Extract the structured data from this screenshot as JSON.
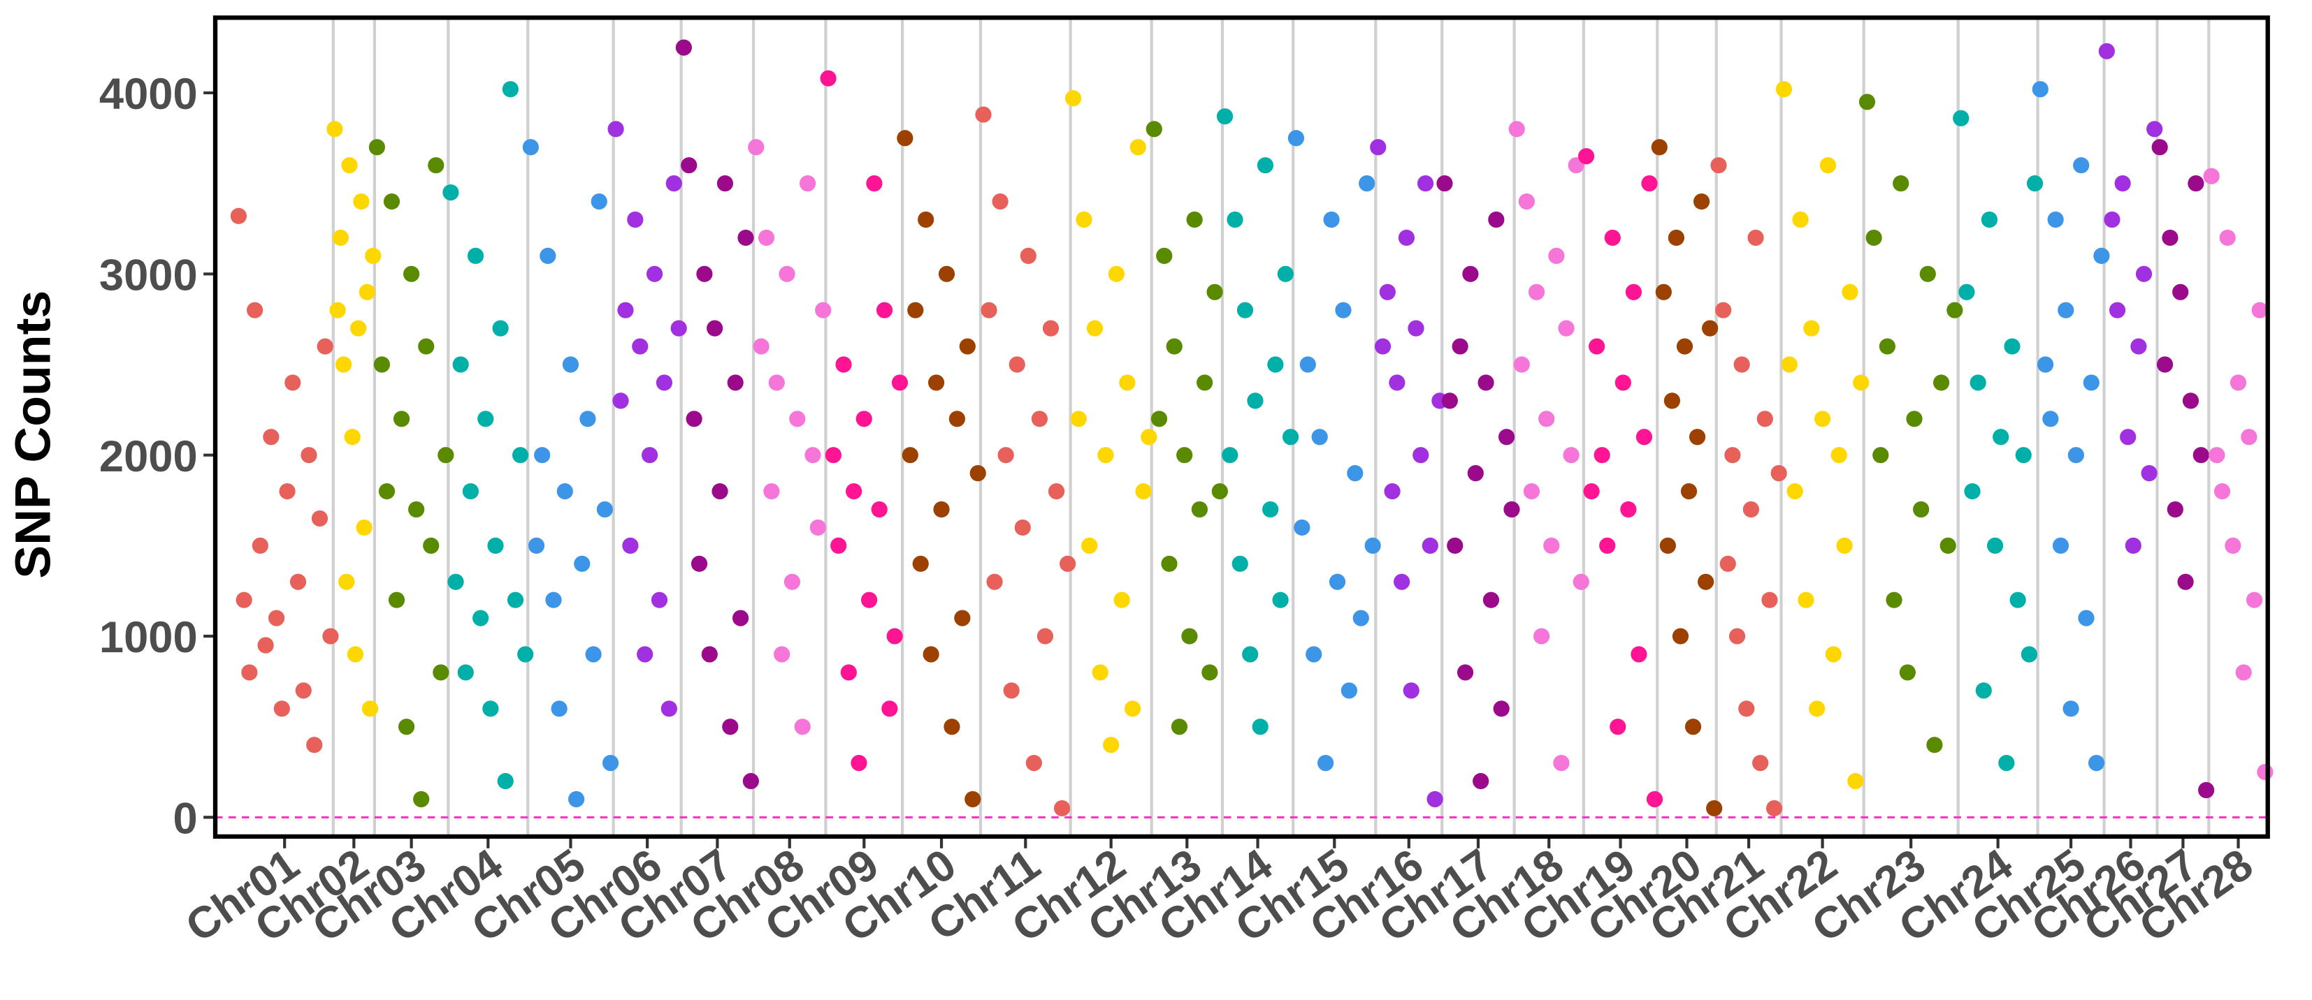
{
  "chart_data": {
    "type": "scatter",
    "y_label": "SNP Counts",
    "ylim": [
      -106,
      4415
    ],
    "yticks": [
      0,
      1000,
      2000,
      3000,
      4000
    ],
    "grid": false,
    "hline": {
      "value": 0,
      "color": "#ff33cc"
    },
    "categories": [
      "Chr01",
      "Chr02",
      "Chr03",
      "Chr04",
      "Chr05",
      "Chr06",
      "Chr07",
      "Chr08",
      "Chr09",
      "Chr10",
      "Chr11",
      "Chr12",
      "Chr13",
      "Chr14",
      "Chr15",
      "Chr16",
      "Chr17",
      "Chr18",
      "Chr19",
      "Chr20",
      "Chr21",
      "Chr22",
      "Chr23",
      "Chr24",
      "Chr25",
      "Chr26",
      "Chr27",
      "Chr28"
    ],
    "series": [
      {
        "color": "#e8605a",
        "values": [
          3320,
          1200,
          800,
          2800,
          1500,
          950,
          2100,
          1100,
          600,
          1800,
          2400,
          1300,
          700,
          2000,
          400,
          1650,
          2600,
          1000
        ]
      },
      {
        "color": "#ffd700",
        "values": [
          3800,
          2800,
          3200,
          2500,
          1300,
          3600,
          2100,
          900,
          2700,
          3400,
          1600,
          2900,
          600,
          3100
        ]
      },
      {
        "color": "#5a8a00",
        "values": [
          3700,
          2500,
          1800,
          3400,
          1200,
          2200,
          500,
          3000,
          1700,
          100,
          2600,
          1500,
          3600,
          800,
          2000
        ]
      },
      {
        "color": "#00b0a8",
        "values": [
          3450,
          1300,
          2500,
          800,
          1800,
          3100,
          1100,
          2200,
          600,
          1500,
          2700,
          200,
          4020,
          1200,
          2000,
          900
        ]
      },
      {
        "color": "#3d95e8",
        "values": [
          3700,
          1500,
          2000,
          3100,
          1200,
          600,
          1800,
          2500,
          100,
          1400,
          2200,
          900,
          3400,
          1700,
          300
        ]
      },
      {
        "color": "#a030e0",
        "values": [
          3800,
          2300,
          2800,
          1500,
          3300,
          2600,
          900,
          2000,
          3000,
          1200,
          2400,
          600,
          3500,
          2700
        ]
      },
      {
        "color": "#9c0a8c",
        "values": [
          4250,
          3600,
          2200,
          1400,
          3000,
          900,
          2700,
          1800,
          3500,
          500,
          2400,
          1100,
          3200,
          200
        ]
      },
      {
        "color": "#f575d8",
        "values": [
          3700,
          2600,
          3200,
          1800,
          2400,
          900,
          3000,
          1300,
          2200,
          500,
          3500,
          2000,
          1600,
          2800
        ]
      },
      {
        "color": "#ff1493",
        "values": [
          4080,
          2000,
          1500,
          2500,
          800,
          1800,
          300,
          2200,
          1200,
          3500,
          1700,
          2800,
          600,
          1000,
          2400
        ]
      },
      {
        "color": "#9c4100",
        "values": [
          3750,
          2000,
          2800,
          1400,
          3300,
          900,
          2400,
          1700,
          3000,
          500,
          2200,
          1100,
          2600,
          100,
          1900
        ]
      },
      {
        "color": "#e8605a",
        "values": [
          3880,
          2800,
          1300,
          3400,
          2000,
          700,
          2500,
          1600,
          3100,
          300,
          2200,
          1000,
          2700,
          1800,
          50,
          1400
        ]
      },
      {
        "color": "#ffd700",
        "values": [
          3970,
          2200,
          3300,
          1500,
          2700,
          800,
          2000,
          400,
          3000,
          1200,
          2400,
          600,
          3700,
          1800,
          2100
        ]
      },
      {
        "color": "#5a8a00",
        "values": [
          3800,
          2200,
          3100,
          1400,
          2600,
          500,
          2000,
          1000,
          3300,
          1700,
          2400,
          800,
          2900,
          1800
        ]
      },
      {
        "color": "#00b0a8",
        "values": [
          3870,
          2000,
          3300,
          1400,
          2800,
          900,
          2300,
          500,
          3600,
          1700,
          2500,
          1200,
          3000,
          2100
        ]
      },
      {
        "color": "#3d95e8",
        "values": [
          3750,
          1600,
          2500,
          900,
          2100,
          300,
          3300,
          1300,
          2800,
          700,
          1900,
          1100,
          3500,
          1500
        ]
      },
      {
        "color": "#a030e0",
        "values": [
          3700,
          2600,
          2900,
          1800,
          2400,
          1300,
          3200,
          700,
          2700,
          2000,
          3500,
          1500,
          100,
          2300
        ]
      },
      {
        "color": "#9c0a8c",
        "values": [
          3500,
          2300,
          1500,
          2600,
          800,
          3000,
          1900,
          200,
          2400,
          1200,
          3300,
          600,
          2100,
          1700
        ]
      },
      {
        "color": "#f575d8",
        "values": [
          3800,
          2500,
          3400,
          1800,
          2900,
          1000,
          2200,
          1500,
          3100,
          300,
          2700,
          2000,
          3600,
          1300
        ]
      },
      {
        "color": "#ff1493",
        "values": [
          3650,
          1800,
          2600,
          2000,
          1500,
          3200,
          500,
          2400,
          1700,
          2900,
          900,
          2100,
          3500,
          100
        ]
      },
      {
        "color": "#9c4100",
        "values": [
          3700,
          2900,
          1500,
          2300,
          3200,
          1000,
          2600,
          1800,
          500,
          2100,
          3400,
          1300,
          2700,
          50
        ]
      },
      {
        "color": "#e8605a",
        "values": [
          3600,
          2800,
          1400,
          2000,
          1000,
          2500,
          600,
          1700,
          3200,
          300,
          2200,
          1200,
          50,
          1900
        ]
      },
      {
        "color": "#ffd700",
        "values": [
          4020,
          2500,
          1800,
          3300,
          1200,
          2700,
          600,
          2200,
          3600,
          900,
          2000,
          1500,
          2900,
          200,
          2400
        ]
      },
      {
        "color": "#5a8a00",
        "values": [
          3950,
          3200,
          2000,
          2600,
          1200,
          3500,
          800,
          2200,
          1700,
          3000,
          400,
          2400,
          1500,
          2800
        ]
      },
      {
        "color": "#00b0a8",
        "values": [
          3860,
          2900,
          1800,
          2400,
          700,
          3300,
          1500,
          2100,
          300,
          2600,
          1200,
          2000,
          900,
          3500
        ]
      },
      {
        "color": "#3d95e8",
        "values": [
          4020,
          2500,
          2200,
          3300,
          1500,
          2800,
          600,
          2000,
          3600,
          1100,
          2400,
          300,
          3100
        ]
      },
      {
        "color": "#a030e0",
        "values": [
          4230,
          3300,
          2800,
          3500,
          2100,
          1500,
          2600,
          3000,
          1900,
          3800
        ]
      },
      {
        "color": "#9c0a8c",
        "values": [
          3700,
          2500,
          3200,
          1700,
          2900,
          1300,
          2300,
          3500,
          2000,
          150
        ]
      },
      {
        "color": "#f575d8",
        "values": [
          3540,
          2000,
          1800,
          3200,
          1500,
          2400,
          800,
          2100,
          1200,
          2800,
          250
        ]
      }
    ]
  }
}
